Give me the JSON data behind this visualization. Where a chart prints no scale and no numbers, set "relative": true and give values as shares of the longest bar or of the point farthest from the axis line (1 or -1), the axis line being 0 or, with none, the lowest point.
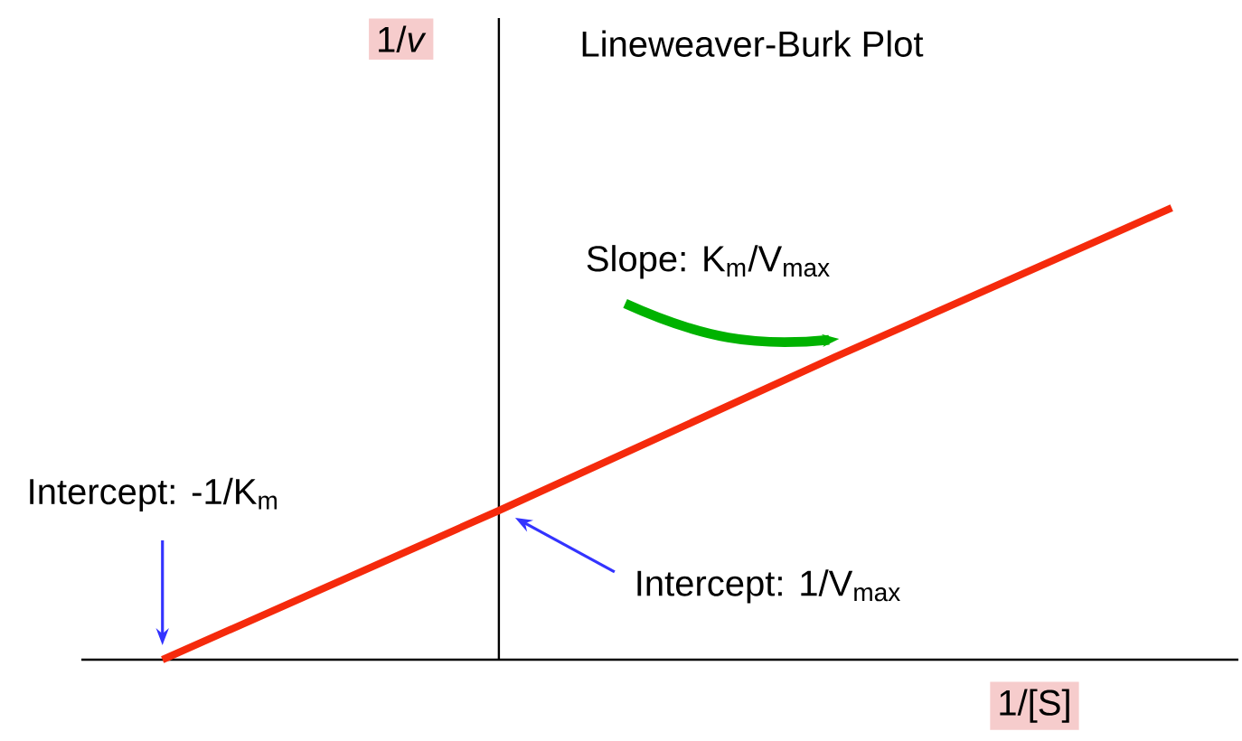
{
  "chart_data": {
    "type": "line",
    "title": "Lineweaver-Burk Plot",
    "xlabel": "1/[S]",
    "ylabel": "1/*v*",
    "relative": true,
    "categories": [
      null,
      null,
      null,
      null
    ],
    "marker": "none",
    "line_style": "solid",
    "series": [
      {
        "color": "#f52a0c",
        "values": [
          0,
          0.33,
          0.67,
          1
        ]
      }
    ],
    "annotations": [
      "Slope: K$_{m}$/V$_{max}$",
      "Intercept: -1/K$_{m}$",
      "Intercept: 1/V$_{max}$"
    ]
  }
}
